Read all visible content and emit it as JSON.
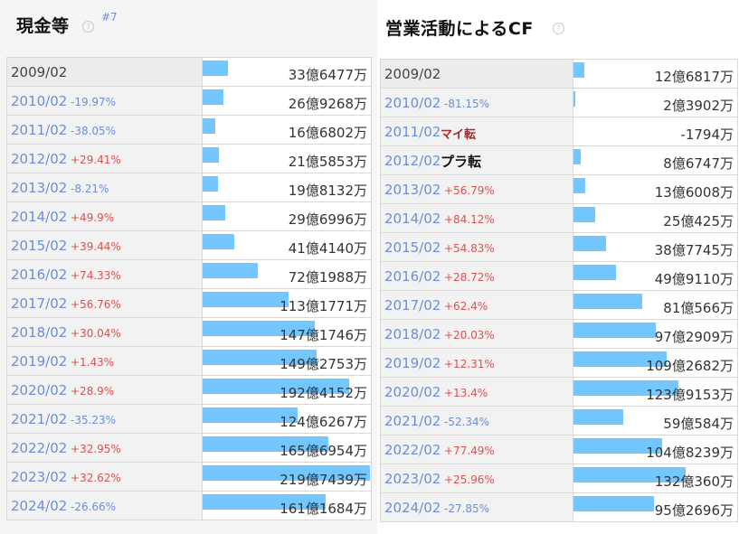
{
  "panels": [
    {
      "title": "現金等",
      "rank_badge": "#7",
      "help_icon": "question-circle-icon",
      "bar_color": "#74c6ff",
      "rows": [
        {
          "period": "2009/02",
          "growth": "",
          "status": "",
          "value": "33億6477万"
        },
        {
          "period": "2010/02",
          "growth": "-19.97%",
          "status": "",
          "value": "26億9268万"
        },
        {
          "period": "2011/02",
          "growth": "-38.05%",
          "status": "",
          "value": "16億6802万"
        },
        {
          "period": "2012/02",
          "growth": "+29.41%",
          "status": "",
          "value": "21億5853万"
        },
        {
          "period": "2013/02",
          "growth": "-8.21%",
          "status": "",
          "value": "19億8132万"
        },
        {
          "period": "2014/02",
          "growth": "+49.9%",
          "status": "",
          "value": "29億6996万"
        },
        {
          "period": "2015/02",
          "growth": "+39.44%",
          "status": "",
          "value": "41億4140万"
        },
        {
          "period": "2016/02",
          "growth": "+74.33%",
          "status": "",
          "value": "72億1988万"
        },
        {
          "period": "2017/02",
          "growth": "+56.76%",
          "status": "",
          "value": "113億1771万"
        },
        {
          "period": "2018/02",
          "growth": "+30.04%",
          "status": "",
          "value": "147億1746万"
        },
        {
          "period": "2019/02",
          "growth": "+1.43%",
          "status": "",
          "value": "149億2753万"
        },
        {
          "period": "2020/02",
          "growth": "+28.9%",
          "status": "",
          "value": "192億4152万"
        },
        {
          "period": "2021/02",
          "growth": "-35.23%",
          "status": "",
          "value": "124億6267万"
        },
        {
          "period": "2022/02",
          "growth": "+32.95%",
          "status": "",
          "value": "165億6954万"
        },
        {
          "period": "2023/02",
          "growth": "+32.62%",
          "status": "",
          "value": "219億7439万"
        },
        {
          "period": "2024/02",
          "growth": "-26.66%",
          "status": "",
          "value": "161億1684万"
        }
      ]
    },
    {
      "title": "営業活動によるCF",
      "rank_badge": "",
      "help_icon": "question-circle-icon",
      "bar_color": "#74c6ff",
      "rows": [
        {
          "period": "2009/02",
          "growth": "",
          "status": "",
          "value": "12億6817万"
        },
        {
          "period": "2010/02",
          "growth": "-81.15%",
          "status": "",
          "value": "2億3902万"
        },
        {
          "period": "2011/02",
          "growth": "",
          "status": "マイ転",
          "value": "-1794万"
        },
        {
          "period": "2012/02",
          "growth": "",
          "status": "プラ転",
          "value": "8億6747万"
        },
        {
          "period": "2013/02",
          "growth": "+56.79%",
          "status": "",
          "value": "13億6008万"
        },
        {
          "period": "2014/02",
          "growth": "+84.12%",
          "status": "",
          "value": "25億425万"
        },
        {
          "period": "2015/02",
          "growth": "+54.83%",
          "status": "",
          "value": "38億7745万"
        },
        {
          "period": "2016/02",
          "growth": "+28.72%",
          "status": "",
          "value": "49億9110万"
        },
        {
          "period": "2017/02",
          "growth": "+62.4%",
          "status": "",
          "value": "81億566万"
        },
        {
          "period": "2018/02",
          "growth": "+20.03%",
          "status": "",
          "value": "97億2909万"
        },
        {
          "period": "2019/02",
          "growth": "+12.31%",
          "status": "",
          "value": "109億2682万"
        },
        {
          "period": "2020/02",
          "growth": "+13.4%",
          "status": "",
          "value": "123億9153万"
        },
        {
          "period": "2021/02",
          "growth": "-52.34%",
          "status": "",
          "value": "59億584万"
        },
        {
          "period": "2022/02",
          "growth": "+77.49%",
          "status": "",
          "value": "104億8239万"
        },
        {
          "period": "2023/02",
          "growth": "+25.96%",
          "status": "",
          "value": "132億360万"
        },
        {
          "period": "2024/02",
          "growth": "-27.85%",
          "status": "",
          "value": "95億2696万"
        }
      ]
    }
  ],
  "chart_data": [
    {
      "type": "bar",
      "title": "現金等",
      "categories": [
        "2009/02",
        "2010/02",
        "2011/02",
        "2012/02",
        "2013/02",
        "2014/02",
        "2015/02",
        "2016/02",
        "2017/02",
        "2018/02",
        "2019/02",
        "2020/02",
        "2021/02",
        "2022/02",
        "2023/02",
        "2024/02"
      ],
      "values": [
        3364770000,
        2692680000,
        1668020000,
        2158530000,
        1981320000,
        2969960000,
        4141400000,
        7219880000,
        11317710000,
        14717460000,
        14927530000,
        19241520000,
        12462670000,
        16569540000,
        21974390000,
        16116840000
      ]
    },
    {
      "type": "bar",
      "title": "営業活動によるCF",
      "categories": [
        "2009/02",
        "2010/02",
        "2011/02",
        "2012/02",
        "2013/02",
        "2014/02",
        "2015/02",
        "2016/02",
        "2017/02",
        "2018/02",
        "2019/02",
        "2020/02",
        "2021/02",
        "2022/02",
        "2023/02",
        "2024/02"
      ],
      "values": [
        1268170000,
        239020000,
        -17940000,
        867470000,
        1360080000,
        2504250000,
        3877450000,
        4991100000,
        8105660000,
        9729090000,
        10926820000,
        12391530000,
        5905840000,
        10482390000,
        13203600000,
        9526960000
      ]
    }
  ]
}
